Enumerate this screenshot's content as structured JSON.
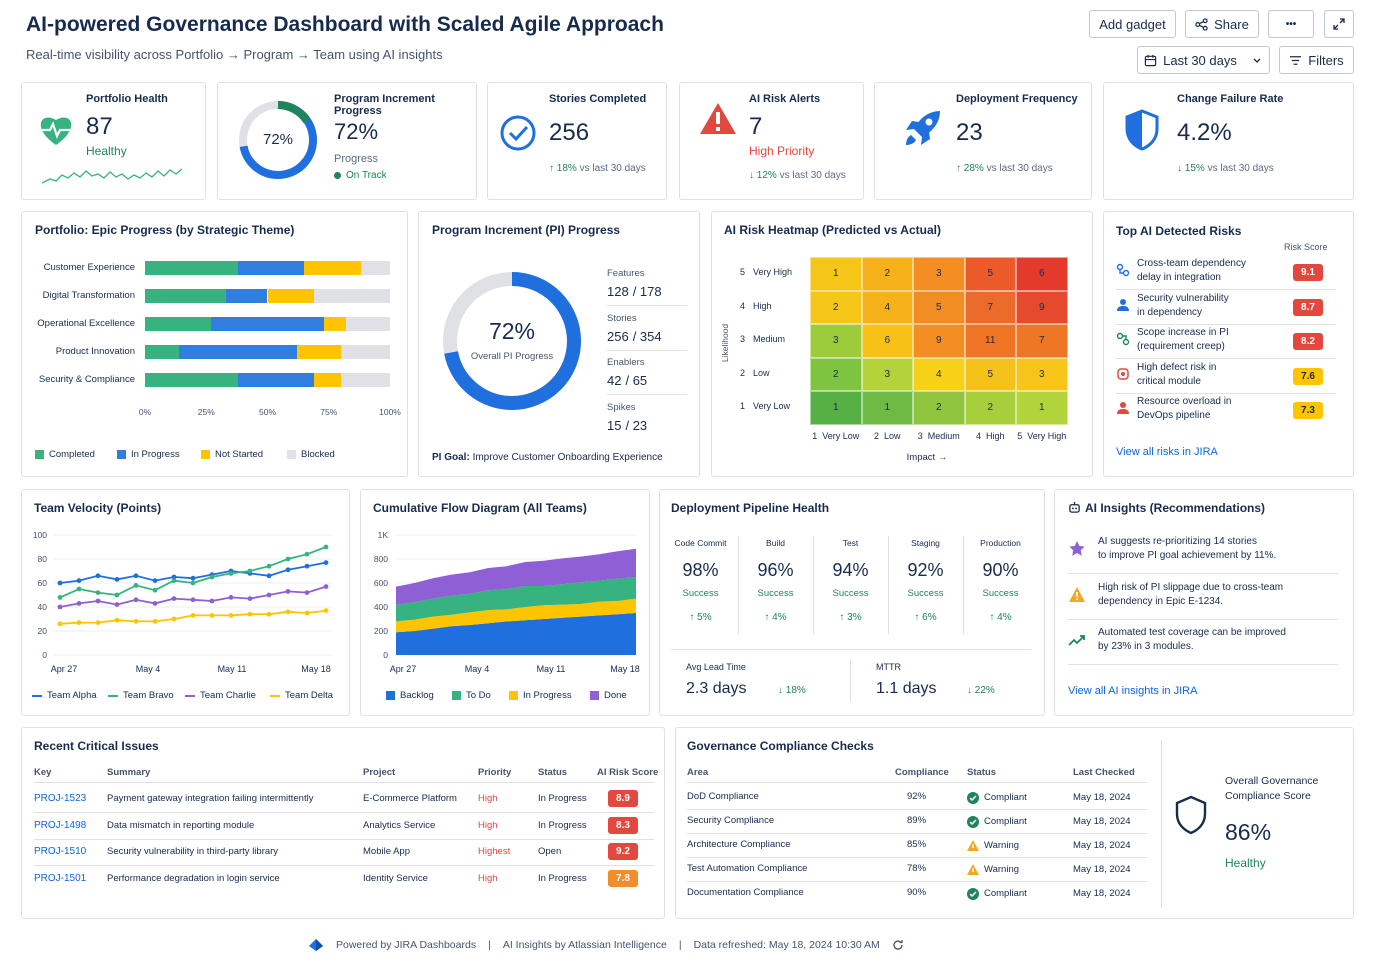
{
  "header": {
    "title": "AI-powered Governance Dashboard with Scaled Agile Approach",
    "subtitle": "Real-time visibility across Portfolio → Program → Team using AI insights",
    "add_gadget": "Add gadget",
    "share": "Share",
    "more": "•••",
    "date_range": "Last 30 days",
    "filters": "Filters"
  },
  "kpis": {
    "health": {
      "title": "Portfolio Health",
      "value": "87",
      "status": "Healthy"
    },
    "pi": {
      "title": "Program Increment Progress",
      "ring": "72%",
      "value": "72%",
      "label": "Progress",
      "status": "On Track",
      "fraction": 0.72
    },
    "stories": {
      "title": "Stories Completed",
      "value": "256",
      "delta": "↑ 18%",
      "delta_text": "vs last 30 days"
    },
    "alerts": {
      "title": "AI Risk Alerts",
      "value": "7",
      "status": "High Priority",
      "delta": "↓ 12%",
      "delta_text": "vs last 30 days"
    },
    "deploy": {
      "title": "Deployment Frequency",
      "value": "23",
      "delta": "↑ 28%",
      "delta_text": "vs last 30 days"
    },
    "cfr": {
      "title": "Change Failure Rate",
      "value": "4.2%",
      "delta": "↓ 15%",
      "delta_text": "vs last 30 days"
    }
  },
  "epic": {
    "title": "Portfolio: Epic Progress (by Strategic Theme)",
    "rows": [
      {
        "label": "Customer Experience",
        "vals": [
          38,
          27,
          23,
          12
        ]
      },
      {
        "label": "Digital Transformation",
        "vals": [
          33,
          17,
          19,
          31
        ]
      },
      {
        "label": "Operational Excellence",
        "vals": [
          27,
          46,
          9,
          18
        ]
      },
      {
        "label": "Product Innovation",
        "vals": [
          14,
          48,
          18,
          20
        ]
      },
      {
        "label": "Security & Compliance",
        "vals": [
          38,
          31,
          11,
          20
        ]
      }
    ],
    "ticks": [
      "0%",
      "25%",
      "50%",
      "75%",
      "100%"
    ],
    "legend": [
      "Completed",
      "In Progress",
      "Not Started",
      "Blocked"
    ],
    "colors": [
      "#36b37e",
      "#2f7ee0",
      "#ffc400",
      "#dfe1e6"
    ]
  },
  "pi_progress": {
    "title": "Program Increment (PI) Progress",
    "ring_value": "72%",
    "ring_label": "Overall PI Progress",
    "fraction": 0.72,
    "items": [
      {
        "label": "Features",
        "done": "128",
        "total": "/ 178"
      },
      {
        "label": "Stories",
        "done": "256",
        "total": "/ 354"
      },
      {
        "label": "Enablers",
        "done": "42",
        "total": "/ 65"
      },
      {
        "label": "Spikes",
        "done": "15",
        "total": "/ 23"
      }
    ],
    "goal_label": "PI Goal:",
    "goal": "Improve Customer Onboarding Experience"
  },
  "heatmap": {
    "title": "AI Risk Heatmap (Predicted vs Actual)",
    "y_labels": [
      {
        "n": "5",
        "t": "Very High"
      },
      {
        "n": "4",
        "t": "High"
      },
      {
        "n": "3",
        "t": "Medium"
      },
      {
        "n": "2",
        "t": "Low"
      },
      {
        "n": "1",
        "t": "Very Low"
      }
    ],
    "x_labels": [
      "1  Very Low",
      "2  Low",
      "3  Medium",
      "4  High",
      "5  Very High"
    ],
    "ylabel": "Likelihood",
    "xlabel": "Impact →",
    "values": [
      [
        1,
        2,
        3,
        5,
        6
      ],
      [
        2,
        4,
        5,
        7,
        9
      ],
      [
        3,
        6,
        9,
        11,
        7
      ],
      [
        2,
        3,
        4,
        5,
        3
      ],
      [
        1,
        1,
        2,
        2,
        1
      ]
    ],
    "colors": [
      [
        "#f5c518",
        "#f7b11a",
        "#f58e22",
        "#ec5a2a",
        "#e23b2c"
      ],
      [
        "#f5c518",
        "#f7b11a",
        "#f28d24",
        "#ec6a2a",
        "#e44a2b"
      ],
      [
        "#9ccc3a",
        "#f7c118",
        "#f58e22",
        "#ef7424",
        "#ee7725"
      ],
      [
        "#7ec440",
        "#b4d33a",
        "#f7d018",
        "#f5c11b",
        "#f7c41a"
      ],
      [
        "#57b043",
        "#6dbb44",
        "#8fc63e",
        "#a7cf3b",
        "#b0d43a"
      ]
    ]
  },
  "risks": {
    "title": "Top AI Detected Risks",
    "score_header": "Risk Score",
    "items": [
      {
        "icon": "dependency-icon",
        "l1": "Cross-team dependency",
        "l2": "delay in integration",
        "score": "9.1",
        "color": "#e2483d"
      },
      {
        "icon": "person-icon",
        "l1": "Security vulnerability",
        "l2": "in dependency",
        "score": "8.7",
        "color": "#e2483d"
      },
      {
        "icon": "scope-icon",
        "l1": "Scope increase in PI",
        "l2": "(requirement creep)",
        "score": "8.2",
        "color": "#e2483d"
      },
      {
        "icon": "bug-icon",
        "l1": "High defect risk in",
        "l2": "critical module",
        "score": "7.6",
        "color": "#ffc400"
      },
      {
        "icon": "resource-icon",
        "l1": "Resource overload in",
        "l2": "DevOps pipeline",
        "score": "7.3",
        "color": "#ffc400"
      }
    ],
    "link": "View all risks in JIRA"
  },
  "velocity": {
    "title": "Team Velocity (Points)",
    "y_ticks": [
      "100",
      "80",
      "60",
      "40",
      "20",
      "0"
    ],
    "x_ticks": [
      "Apr 27",
      "May 4",
      "May 11",
      "May 18"
    ],
    "legend": [
      "Team Alpha",
      "Team Bravo",
      "Team Charlie",
      "Team Delta"
    ]
  },
  "cfd": {
    "title": "Cumulative Flow Diagram (All Teams)",
    "y_ticks": [
      "1K",
      "800",
      "600",
      "400",
      "200",
      "0"
    ],
    "x_ticks": [
      "Apr 27",
      "May 4",
      "May 11",
      "May 18"
    ],
    "legend": [
      "Backlog",
      "To Do",
      "In Progress",
      "Done"
    ]
  },
  "pipeline": {
    "title": "Deployment Pipeline Health",
    "stages": [
      {
        "name": "Code Commit",
        "value": "98%",
        "label": "Success",
        "delta": "↑ 5%"
      },
      {
        "name": "Build",
        "value": "96%",
        "label": "Success",
        "delta": "↑ 4%"
      },
      {
        "name": "Test",
        "value": "94%",
        "label": "Success",
        "delta": "↑ 3%"
      },
      {
        "name": "Staging",
        "value": "92%",
        "label": "Success",
        "delta": "↑ 6%"
      },
      {
        "name": "Production",
        "value": "90%",
        "label": "Success",
        "delta": "↑ 4%"
      }
    ],
    "lead_label": "Avg Lead Time",
    "lead_value": "2.3 days",
    "lead_delta": "↓ 18%",
    "mttr_label": "MTTR",
    "mttr_value": "1.1 days",
    "mttr_delta": "↓ 22%"
  },
  "insights": {
    "title": "AI Insights (Recommendations)",
    "items": [
      {
        "l1": "AI suggests re-prioritizing 14 stories",
        "l2": "to improve PI goal achievement by 11%."
      },
      {
        "l1": "High risk of PI slippage due to cross-team",
        "l2": "dependency in Epic E-1234."
      },
      {
        "l1": "Automated test coverage can be improved",
        "l2": "by 23% in 3 modules."
      }
    ],
    "link": "View all AI insights in JIRA"
  },
  "issues": {
    "title": "Recent Critical Issues",
    "cols": [
      "Key",
      "Summary",
      "Project",
      "Priority",
      "Status",
      "AI Risk Score"
    ],
    "rows": [
      {
        "key": "PROJ-1523",
        "summary": "Payment gateway integration failing intermittently",
        "project": "E-Commerce Platform",
        "priority": "High",
        "status": "In Progress",
        "score": "8.9",
        "color": "#e2483d"
      },
      {
        "key": "PROJ-1498",
        "summary": "Data mismatch in reporting module",
        "project": "Analytics Service",
        "priority": "High",
        "status": "In Progress",
        "score": "8.3",
        "color": "#e2483d"
      },
      {
        "key": "PROJ-1510",
        "summary": "Security vulnerability in third-party library",
        "project": "Mobile App",
        "priority": "Highest",
        "status": "Open",
        "score": "9.2",
        "color": "#e2483d"
      },
      {
        "key": "PROJ-1501",
        "summary": "Performance degradation in login service",
        "project": "Identity Service",
        "priority": "High",
        "status": "In Progress",
        "score": "7.8",
        "color": "#f18d2b"
      }
    ]
  },
  "compliance": {
    "title": "Governance Compliance Checks",
    "cols": [
      "Area",
      "Compliance",
      "Status",
      "Last Checked"
    ],
    "rows": [
      {
        "area": "DoD Compliance",
        "pct": "92%",
        "status": "Compliant",
        "date": "May 18, 2024",
        "ok": true
      },
      {
        "area": "Security Compliance",
        "pct": "89%",
        "status": "Compliant",
        "date": "May 18, 2024",
        "ok": true
      },
      {
        "area": "Architecture Compliance",
        "pct": "85%",
        "status": "Warning",
        "date": "May 18, 2024",
        "ok": false
      },
      {
        "area": "Test Automation Compliance",
        "pct": "78%",
        "status": "Warning",
        "date": "May 18, 2024",
        "ok": false
      },
      {
        "area": "Documentation Compliance",
        "pct": "90%",
        "status": "Compliant",
        "date": "May 18, 2024",
        "ok": true
      }
    ],
    "overall_l1": "Overall Governance",
    "overall_l2": "Compliance Score",
    "overall_value": "86%",
    "overall_status": "Healthy"
  },
  "footer": {
    "powered": "Powered by JIRA Dashboards",
    "sep": "|",
    "ai": "AI Insights by Atlassian Intelligence",
    "refreshed": "Data refreshed: May 18, 2024 10:30 AM"
  }
}
